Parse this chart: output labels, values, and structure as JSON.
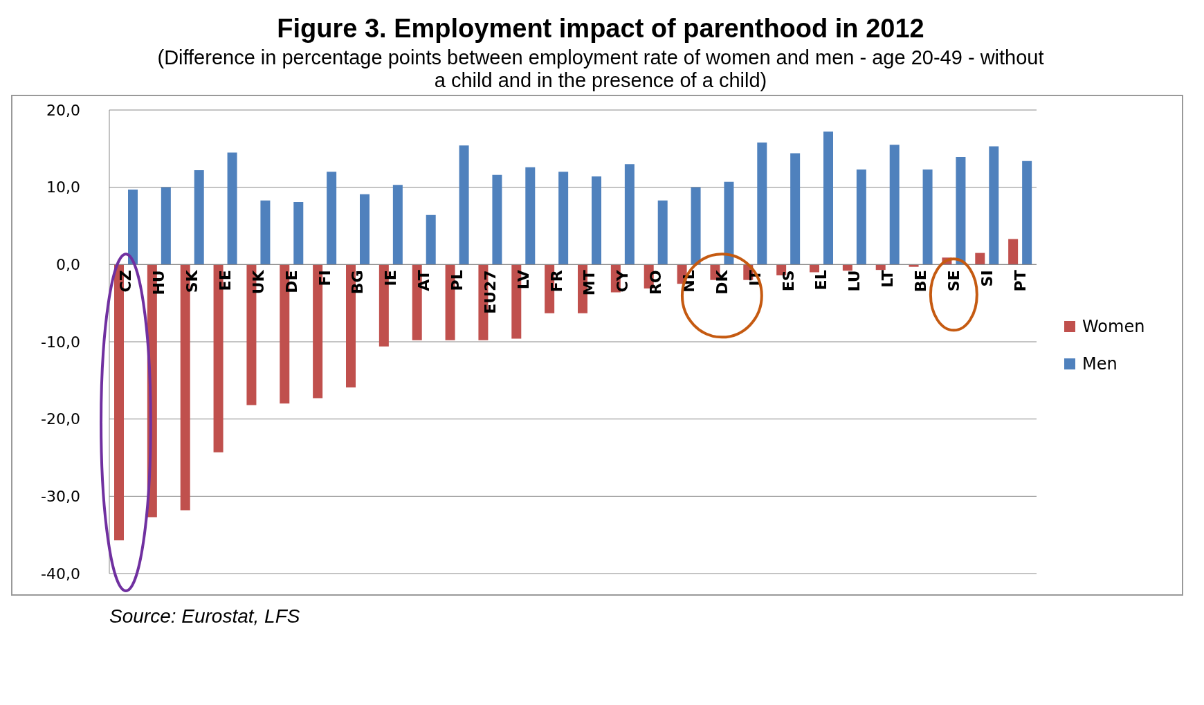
{
  "chart_data": {
    "type": "bar",
    "title": "Figure 3. Employment impact of parenthood in 2012",
    "subtitle": "(Difference in percentage points between employment rate of women and men - age 20-49 - without a child and in the presence of a child)",
    "categories": [
      "CZ",
      "HU",
      "SK",
      "EE",
      "UK",
      "DE",
      "FI",
      "BG",
      "IE",
      "AT",
      "PL",
      "EU27",
      "LV",
      "FR",
      "MT",
      "CY",
      "RO",
      "NL",
      "DK",
      "IT",
      "ES",
      "EL",
      "LU",
      "LT",
      "BE",
      "SE",
      "SI",
      "PT"
    ],
    "series": [
      {
        "name": "Women",
        "color": "#c0504d",
        "values": [
          -35.7,
          -32.7,
          -31.8,
          -24.3,
          -18.2,
          -18.0,
          -17.3,
          -15.9,
          -10.6,
          -9.8,
          -9.8,
          -9.8,
          -9.6,
          -6.3,
          -6.3,
          -3.6,
          -3.1,
          -2.5,
          -2.0,
          -2.0,
          -1.4,
          -1.0,
          -0.8,
          -0.7,
          -0.3,
          0.9,
          1.5,
          3.3
        ]
      },
      {
        "name": "Men",
        "color": "#4f81bd",
        "values": [
          9.7,
          10.0,
          12.2,
          14.5,
          8.3,
          8.1,
          12.0,
          9.1,
          10.3,
          6.4,
          15.4,
          11.6,
          12.6,
          12.0,
          11.4,
          13.0,
          8.3,
          10.0,
          10.7,
          15.8,
          14.4,
          17.2,
          12.3,
          15.5,
          12.3,
          13.9,
          15.3,
          13.4
        ]
      }
    ],
    "ylim": [
      -40,
      20
    ],
    "yticks": [
      {
        "value": -40,
        "label": "-40,0"
      },
      {
        "value": -30,
        "label": "-30,0"
      },
      {
        "value": -20,
        "label": "-20,0"
      },
      {
        "value": -10,
        "label": "-10,0"
      },
      {
        "value": 0,
        "label": "0,0"
      },
      {
        "value": 10,
        "label": "10,0"
      },
      {
        "value": 20,
        "label": "20,0"
      }
    ],
    "grid": "y",
    "legend": "right",
    "annotations": [
      "Source: Eurostat, LFS"
    ]
  }
}
